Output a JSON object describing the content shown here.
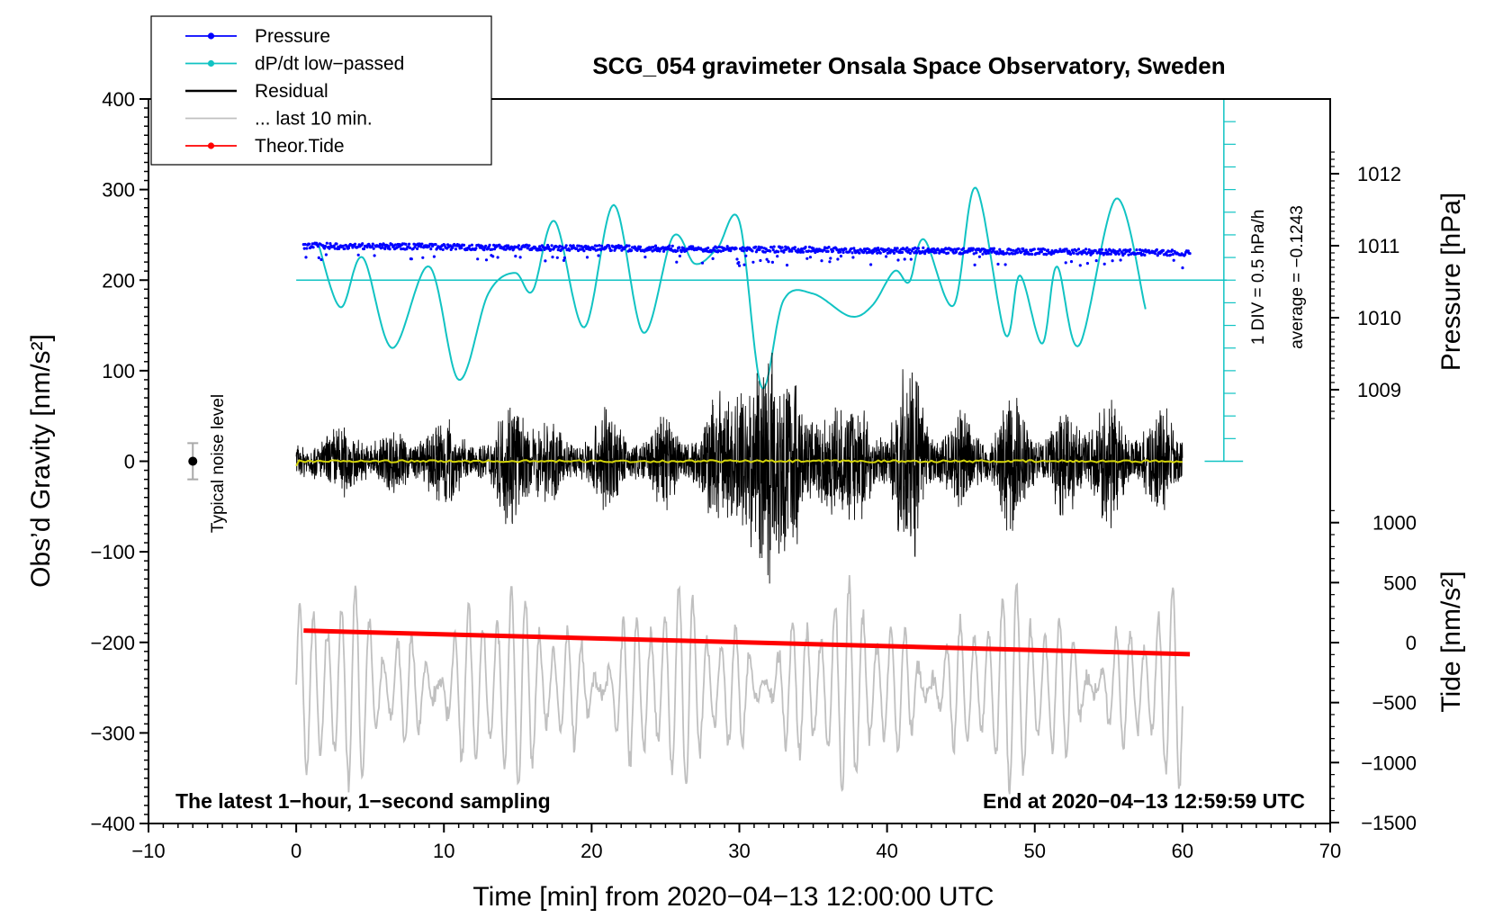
{
  "chart_data": {
    "type": "line",
    "title": "SCG_054 gravimeter Onsala Space Observatory, Sweden",
    "xlabel": "Time [min] from 2020−04−13 12:00:00 UTC",
    "ylabel_left": "Obs’d Gravity [nm/s²]",
    "ylabel_right_top": "Pressure [hPa]",
    "ylabel_right_bottom": "Tide [nm/s²]",
    "xlim": [
      -10,
      70
    ],
    "ylim": [
      -400,
      400
    ],
    "x_ticks": [
      "−10",
      "0",
      "10",
      "20",
      "30",
      "40",
      "50",
      "60",
      "70"
    ],
    "y_ticks": [
      "400",
      "300",
      "200",
      "100",
      "0",
      "−100",
      "−200",
      "−300",
      "−400"
    ],
    "pressure_axis": {
      "ticks": [
        {
          "value": 1009,
          "label": "1009"
        },
        {
          "value": 1010,
          "label": "1010"
        },
        {
          "value": 1011,
          "label": "1011"
        },
        {
          "value": 1012,
          "label": "1012"
        }
      ]
    },
    "tide_axis": {
      "ticks": [
        {
          "value": 1000,
          "label": "1000"
        },
        {
          "value": 500,
          "label": "500"
        },
        {
          "value": 0,
          "label": "0"
        },
        {
          "value": -500,
          "label": "−500"
        },
        {
          "value": -1000,
          "label": "−1000"
        },
        {
          "value": -1500,
          "label": "−1500"
        }
      ]
    },
    "legend": [
      {
        "name": "Pressure",
        "color": "#0000ff",
        "marker": true
      },
      {
        "name": "dP/dt low−passed",
        "color": "#11c3c3",
        "marker": true
      },
      {
        "name": "Residual",
        "color": "#000000",
        "marker": false
      },
      {
        "name": "... last 10 min.",
        "color": "#c0c0c0",
        "marker": false
      },
      {
        "name": "Theor.Tide",
        "color": "#ff0000",
        "marker": true
      }
    ],
    "series": [
      {
        "name": "Pressure",
        "unit": "hPa",
        "x_range": [
          0.5,
          60.5
        ],
        "start": 1011.0,
        "end": 1010.9
      },
      {
        "name": "dP/dt low−passed",
        "unit": "hPa/h",
        "baseline_gravity": 200,
        "keypoints": [
          [
            1.5,
            240
          ],
          [
            3.0,
            170
          ],
          [
            4.5,
            225
          ],
          [
            6.5,
            125
          ],
          [
            9.0,
            215
          ],
          [
            11.0,
            90
          ],
          [
            13.0,
            185
          ],
          [
            14.8,
            208
          ],
          [
            16.0,
            188
          ],
          [
            17.5,
            265
          ],
          [
            19.5,
            148
          ],
          [
            21.5,
            283
          ],
          [
            23.5,
            142
          ],
          [
            25.5,
            248
          ],
          [
            27.0,
            218
          ],
          [
            28.5,
            235
          ],
          [
            30.0,
            265
          ],
          [
            31.5,
            82
          ],
          [
            33.0,
            178
          ],
          [
            35.0,
            185
          ],
          [
            37.5,
            160
          ],
          [
            39.0,
            172
          ],
          [
            40.5,
            210
          ],
          [
            41.5,
            198
          ],
          [
            42.5,
            245
          ],
          [
            44.5,
            172
          ],
          [
            46.0,
            302
          ],
          [
            48.0,
            140
          ],
          [
            49.0,
            205
          ],
          [
            50.5,
            130
          ],
          [
            51.5,
            215
          ],
          [
            53.0,
            128
          ],
          [
            55.5,
            290
          ],
          [
            57.5,
            168
          ]
        ]
      },
      {
        "name": "Residual",
        "x_range": [
          0,
          60
        ]
      },
      {
        "name": "... last 10 min.",
        "x_range": [
          0,
          60
        ],
        "center_gravity": -250
      },
      {
        "name": "Theor.Tide",
        "x_range": [
          0.5,
          60.5
        ],
        "start_gravity": -187,
        "end_gravity": -213
      }
    ],
    "dpdt_scale": {
      "line1": "1 DIV = 0.5 hPa/h",
      "line2": "average = −0.1243"
    },
    "noise_label": "Typical noise level",
    "annotation_left": "The latest 1−hour, 1−second sampling",
    "annotation_right": "End at 2020−04−13 12:59:59 UTC"
  }
}
